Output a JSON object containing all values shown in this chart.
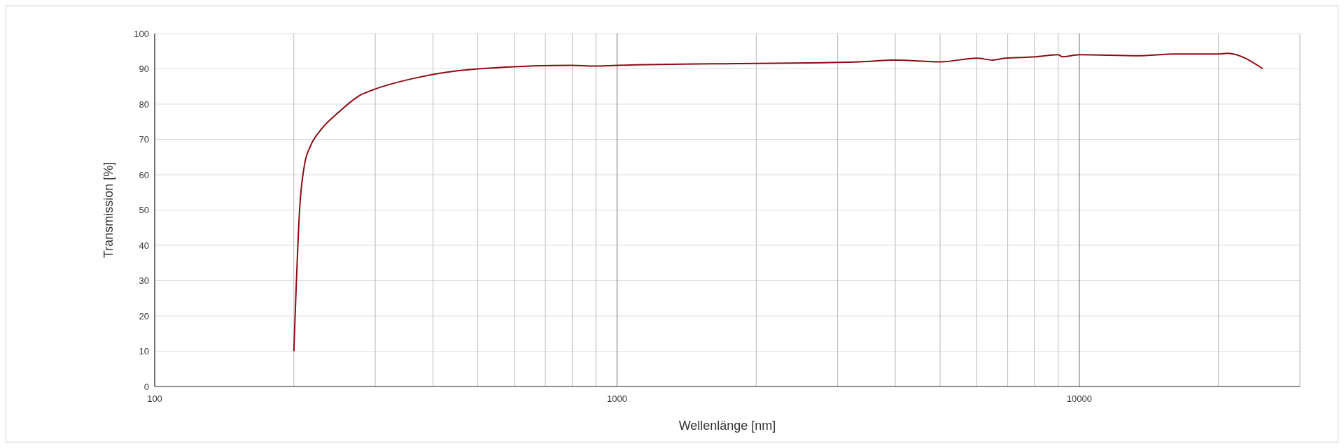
{
  "chart_data": {
    "type": "line",
    "xlabel": "Wellenlänge [nm]",
    "ylabel": "Transmission [%]",
    "log": "x",
    "xlim": [
      100,
      30000
    ],
    "ylim": [
      0,
      100
    ],
    "xticks": [
      100,
      {
        "value": 200,
        "label": null
      },
      {
        "value": 300,
        "label": null
      },
      {
        "value": 400,
        "label": null
      },
      {
        "value": 500,
        "label": null
      },
      {
        "value": 600,
        "label": null
      },
      {
        "value": 700,
        "label": null
      },
      {
        "value": 800,
        "label": null
      },
      {
        "value": 900,
        "label": null
      },
      1000,
      {
        "value": 2000,
        "label": null
      },
      {
        "value": 3000,
        "label": null
      },
      {
        "value": 4000,
        "label": null
      },
      {
        "value": 5000,
        "label": null
      },
      {
        "value": 6000,
        "label": null
      },
      {
        "value": 7000,
        "label": null
      },
      {
        "value": 8000,
        "label": null
      },
      {
        "value": 9000,
        "label": null
      },
      10000,
      {
        "value": 20000,
        "label": null
      }
    ],
    "yticks": [
      0,
      10,
      20,
      30,
      40,
      50,
      60,
      70,
      80,
      90,
      100
    ],
    "grid": true,
    "line_style": "solid",
    "marker": "none",
    "series": [
      {
        "color": "#8b0a14",
        "x": [
          200,
          206,
          211,
          217,
          229,
          250,
          278,
          296,
          366,
          500,
          798,
          895,
          1000,
          3350,
          4000,
          5020,
          6000,
          6500,
          6900,
          8010,
          9000,
          9200,
          10000,
          13360,
          16200,
          20000,
          20900,
          24950
        ],
        "values": [
          10,
          51,
          63,
          68,
          72.8,
          77.7,
          82.5,
          84,
          87.4,
          90,
          91,
          90.8,
          91,
          92,
          92.5,
          92,
          93,
          92.5,
          93,
          93.4,
          94,
          93.4,
          94,
          93.7,
          94.2,
          94.2,
          94.4,
          90
        ]
      }
    ]
  }
}
